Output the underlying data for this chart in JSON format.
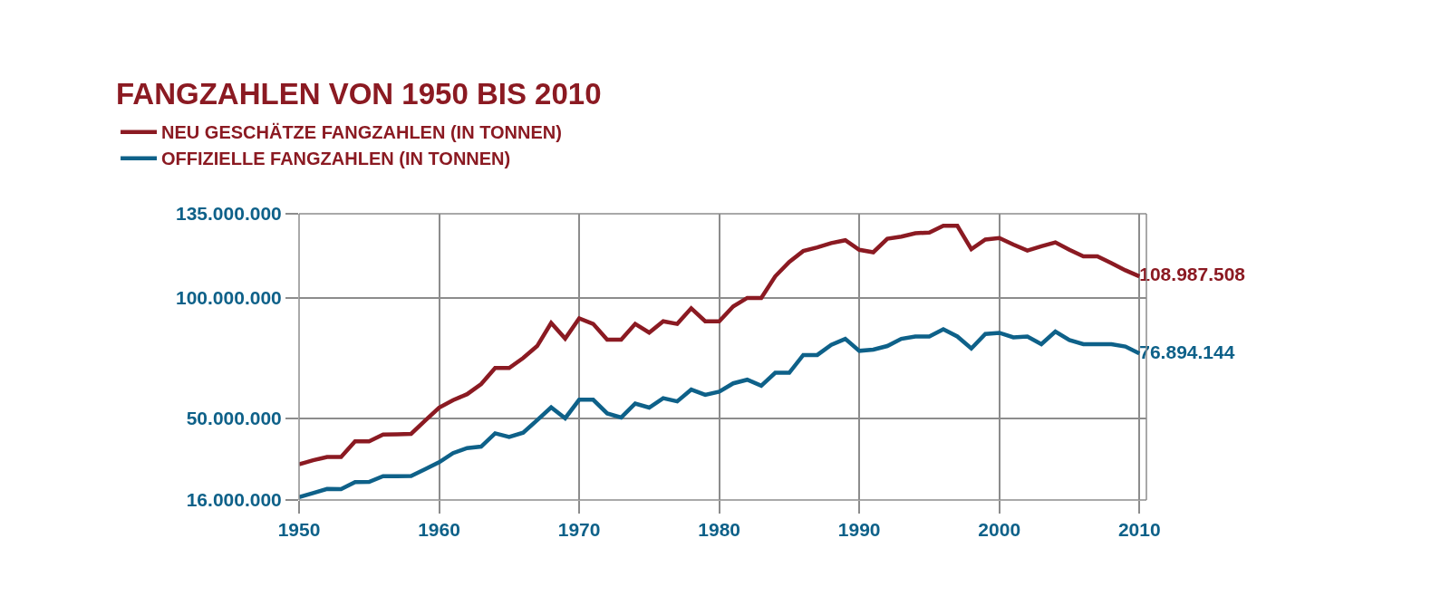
{
  "chart_data": {
    "type": "line",
    "title": "FANGZAHLEN VON 1950 BIS 2010",
    "x": [
      1950,
      1951,
      1952,
      1953,
      1954,
      1955,
      1956,
      1957,
      1958,
      1959,
      1960,
      1961,
      1962,
      1963,
      1964,
      1965,
      1966,
      1967,
      1968,
      1969,
      1970,
      1971,
      1972,
      1973,
      1974,
      1975,
      1976,
      1977,
      1978,
      1979,
      1980,
      1981,
      1982,
      1983,
      1984,
      1985,
      1986,
      1987,
      1988,
      1989,
      1990,
      1991,
      1992,
      1993,
      1994,
      1995,
      1996,
      1997,
      1998,
      1999,
      2000,
      2001,
      2002,
      2003,
      2004,
      2005,
      2006,
      2007,
      2008,
      2009,
      2010
    ],
    "series": [
      {
        "name": "NEU GESCHÄTZE FANGZAHLEN (IN TONNEN)",
        "color": "#8b1a22",
        "values": [
          30800000,
          32500000,
          33900000,
          33900000,
          40400000,
          40400000,
          43200000,
          43300000,
          43500000,
          49000000,
          54400000,
          57500000,
          60000000,
          64200000,
          70900000,
          70900000,
          75000000,
          80000000,
          89600000,
          83100000,
          91500000,
          89200000,
          82700000,
          82700000,
          89200000,
          85600000,
          90300000,
          89200000,
          95700000,
          90300000,
          90300000,
          96500000,
          100000000,
          100000000,
          109000000,
          115000000,
          119500000,
          121000000,
          122800000,
          124000000,
          120000000,
          119000000,
          124600000,
          125500000,
          126900000,
          127200000,
          130000000,
          130000000,
          120300000,
          124300000,
          124900000,
          122200000,
          119700000,
          121500000,
          123100000,
          120000000,
          117300000,
          117300000,
          114500000,
          111500000,
          108987508
        ],
        "value_labels": [
          null,
          null,
          null,
          null,
          null,
          null,
          null,
          null,
          null,
          null,
          null,
          null,
          null,
          null,
          null,
          null,
          null,
          null,
          null,
          null,
          null,
          null,
          null,
          null,
          null,
          null,
          null,
          null,
          null,
          null,
          null,
          null,
          null,
          null,
          null,
          null,
          null,
          null,
          null,
          null,
          null,
          null,
          null,
          null,
          null,
          null,
          null,
          null,
          null,
          null,
          null,
          null,
          null,
          null,
          null,
          null,
          null,
          null,
          null,
          null,
          "108.987.508"
        ]
      },
      {
        "name": "OFFIZIELLE FANGZAHLEN (IN TONNEN)",
        "color": "#0e6189",
        "values": [
          17200000,
          18900000,
          20600000,
          20500000,
          23400000,
          23500000,
          25900000,
          25900000,
          26000000,
          28800000,
          31700000,
          35500000,
          37600000,
          38200000,
          43700000,
          42200000,
          44000000,
          49200000,
          54500000,
          50000000,
          57700000,
          57700000,
          52000000,
          50300000,
          56100000,
          54400000,
          58300000,
          57000000,
          61900000,
          59700000,
          61000000,
          64500000,
          66000000,
          63500000,
          68900000,
          68900000,
          76300000,
          76300000,
          80500000,
          83000000,
          78000000,
          78500000,
          80000000,
          83000000,
          84000000,
          84000000,
          87000000,
          84000000,
          79000000,
          85000000,
          85500000,
          83600000,
          84000000,
          80800000,
          86000000,
          82500000,
          80800000,
          80800000,
          80800000,
          79800000,
          76894144
        ],
        "value_labels": [
          null,
          null,
          null,
          null,
          null,
          null,
          null,
          null,
          null,
          null,
          null,
          null,
          null,
          null,
          null,
          null,
          null,
          null,
          null,
          null,
          null,
          null,
          null,
          null,
          null,
          null,
          null,
          null,
          null,
          null,
          null,
          null,
          null,
          null,
          null,
          null,
          null,
          null,
          null,
          null,
          null,
          null,
          null,
          null,
          null,
          null,
          null,
          null,
          null,
          null,
          null,
          null,
          null,
          null,
          null,
          null,
          null,
          null,
          null,
          null,
          "76.894.144"
        ]
      }
    ],
    "xlim": [
      1950,
      2010.5
    ],
    "xticks": [
      1950,
      1960,
      1970,
      1980,
      1990,
      2000,
      2010
    ],
    "ylim": [
      16000000,
      135000000
    ],
    "yticks": [
      {
        "value": 16000000,
        "label": "16.000.000"
      },
      {
        "value": 50000000,
        "label": "50.000.000"
      },
      {
        "value": 100000000,
        "label": "100.000.000"
      },
      {
        "value": 135000000,
        "label": "135.000.000"
      }
    ],
    "grid": true,
    "legend": "top left",
    "marker": "none",
    "line_style": "solid"
  }
}
